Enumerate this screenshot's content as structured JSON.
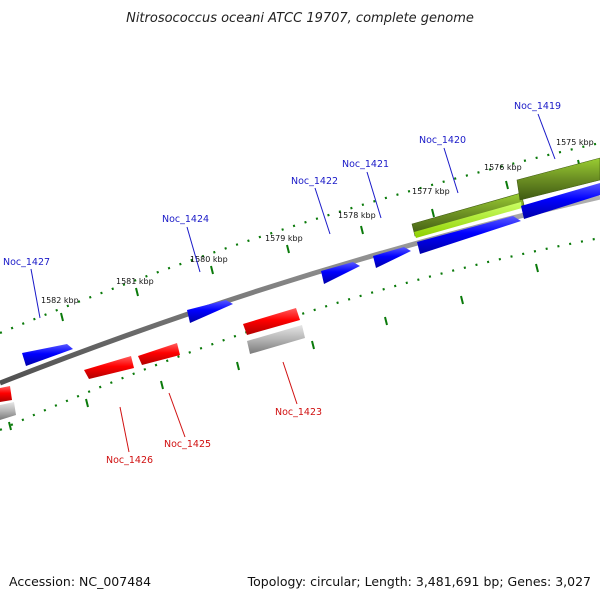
{
  "title": "Nitrosococcus oceani ATCC 19707, complete genome",
  "accession": "Accession: NC_007484",
  "summary": "Topology: circular; Length: 3,481,691 bp; Genes: 3,027",
  "colors": {
    "backbone": "#808080",
    "forward_gene": "#0000ff",
    "reverse_gene": "#ff0000",
    "rna_feature": "#b4b4b4",
    "tick": "#0a7a0a",
    "highlight": "#6b8e23"
  },
  "scale": [
    "1575 kbp",
    "1576 kbp",
    "1577 kbp",
    "1578 kbp",
    "1579 kbp",
    "1580 kbp",
    "1581 kbp",
    "1582 kbp"
  ],
  "forward_genes": [
    "Noc_1419",
    "Noc_1420",
    "Noc_1421",
    "Noc_1422",
    "Noc_1424",
    "Noc_1427"
  ],
  "reverse_genes": [
    "Noc_1423",
    "Noc_1425",
    "Noc_1426"
  ]
}
